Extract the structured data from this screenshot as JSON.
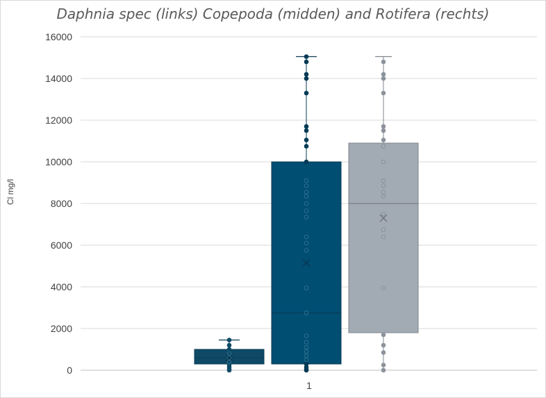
{
  "chart_data": {
    "type": "box",
    "title": "Daphnia spec (links) Copepoda (midden) and Rotifera (rechts)",
    "ylabel": "Cl mg/l",
    "xlabel": "",
    "categories": [
      "1"
    ],
    "ylim": [
      0,
      16000
    ],
    "yticks": [
      0,
      2000,
      4000,
      6000,
      8000,
      10000,
      12000,
      14000,
      16000
    ],
    "grid": true,
    "series": [
      {
        "min": 0,
        "q1": 300,
        "median": 600,
        "q3": 1000,
        "max": 1450,
        "mean": 600,
        "points": [
          0,
          50,
          150,
          250,
          400,
          600,
          800,
          1000,
          1200,
          1450
        ],
        "color": "#0e4a66",
        "point_color": "#0e4a66"
      },
      {
        "min": 0,
        "q1": 300,
        "median": 2750,
        "q3": 10000,
        "max": 15050,
        "mean": 5150,
        "points": [
          0,
          50,
          150,
          300,
          500,
          700,
          900,
          1100,
          1350,
          1650,
          2750,
          3950,
          5750,
          6100,
          6400,
          7350,
          7650,
          8000,
          8350,
          8550,
          8850,
          9100,
          10000,
          10750,
          11050,
          11500,
          11700,
          13300,
          14000,
          14200,
          14800,
          15050
        ],
        "color": "#004e72",
        "point_color": "#003a55"
      },
      {
        "min": 0,
        "q1": 1800,
        "median": 8000,
        "q3": 10900,
        "max": 15050,
        "mean": 7300,
        "points": [
          0,
          250,
          850,
          1200,
          1700,
          3950,
          6400,
          6750,
          7500,
          8350,
          8550,
          8850,
          9100,
          10000,
          10750,
          11050,
          11500,
          11700,
          13300,
          14000,
          14200,
          14800
        ],
        "color": "#a2aab4",
        "point_color": "#8c939c"
      }
    ]
  }
}
